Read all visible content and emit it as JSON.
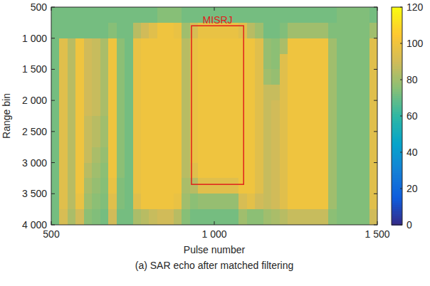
{
  "chart_data": {
    "type": "heatmap",
    "title": "(a) SAR echo after matched filtering",
    "x_label": "Pulse number",
    "y_label": "Range bin",
    "x_edges": [
      500,
      525,
      550,
      575,
      600,
      625,
      650,
      675,
      700,
      725,
      750,
      775,
      800,
      825,
      850,
      875,
      900,
      925,
      950,
      975,
      1000,
      1025,
      1050,
      1075,
      1100,
      1125,
      1150,
      1175,
      1200,
      1225,
      1250,
      1275,
      1300,
      1325,
      1350,
      1375,
      1400,
      1425,
      1450,
      1475,
      1500
    ],
    "y_edges": [
      500,
      750,
      1000,
      1250,
      1500,
      1750,
      2000,
      2250,
      2500,
      2750,
      3000,
      3250,
      3500,
      3750,
      4000
    ],
    "cells": [
      [
        72,
        72,
        72,
        72,
        72,
        72,
        72,
        72,
        72,
        72,
        72,
        72,
        72,
        75,
        75,
        75,
        72,
        72,
        72,
        72,
        72,
        72,
        72,
        72,
        72,
        72,
        72,
        72,
        72,
        72,
        72,
        72,
        72,
        72,
        72,
        74,
        74,
        74,
        74,
        72
      ],
      [
        72,
        72,
        72,
        72,
        72,
        72,
        72,
        75,
        72,
        72,
        85,
        90,
        95,
        100,
        100,
        98,
        80,
        92,
        98,
        98,
        98,
        98,
        98,
        95,
        85,
        80,
        72,
        72,
        74,
        80,
        80,
        80,
        80,
        80,
        74,
        74,
        74,
        74,
        74,
        80
      ],
      [
        72,
        95,
        85,
        100,
        90,
        88,
        82,
        100,
        76,
        72,
        98,
        100,
        100,
        100,
        100,
        100,
        85,
        98,
        100,
        100,
        100,
        100,
        100,
        100,
        100,
        95,
        78,
        76,
        82,
        100,
        100,
        100,
        100,
        100,
        80,
        74,
        74,
        74,
        74,
        95
      ],
      [
        72,
        95,
        85,
        100,
        90,
        88,
        82,
        100,
        76,
        72,
        98,
        100,
        100,
        100,
        100,
        100,
        85,
        98,
        100,
        100,
        100,
        100,
        100,
        100,
        100,
        95,
        78,
        76,
        95,
        100,
        100,
        100,
        100,
        100,
        80,
        74,
        74,
        74,
        74,
        95
      ],
      [
        72,
        95,
        85,
        100,
        90,
        88,
        82,
        100,
        76,
        72,
        98,
        100,
        100,
        100,
        100,
        100,
        85,
        98,
        100,
        100,
        100,
        100,
        100,
        100,
        100,
        95,
        80,
        78,
        95,
        100,
        100,
        100,
        100,
        100,
        80,
        74,
        74,
        74,
        74,
        95
      ],
      [
        72,
        95,
        85,
        100,
        90,
        88,
        82,
        100,
        76,
        72,
        98,
        100,
        100,
        100,
        100,
        100,
        85,
        98,
        100,
        100,
        100,
        100,
        100,
        100,
        100,
        95,
        88,
        88,
        95,
        100,
        100,
        100,
        100,
        100,
        80,
        74,
        74,
        74,
        74,
        95
      ],
      [
        72,
        95,
        85,
        100,
        90,
        88,
        82,
        100,
        76,
        72,
        98,
        100,
        100,
        100,
        100,
        100,
        85,
        98,
        100,
        100,
        100,
        100,
        100,
        100,
        100,
        95,
        88,
        90,
        95,
        100,
        100,
        100,
        100,
        100,
        80,
        74,
        74,
        74,
        74,
        95
      ],
      [
        72,
        95,
        85,
        100,
        88,
        85,
        80,
        100,
        76,
        72,
        98,
        100,
        100,
        100,
        100,
        100,
        85,
        98,
        100,
        100,
        100,
        100,
        100,
        100,
        100,
        95,
        88,
        90,
        95,
        100,
        100,
        100,
        100,
        100,
        80,
        74,
        74,
        74,
        74,
        95
      ],
      [
        72,
        95,
        85,
        100,
        88,
        85,
        80,
        100,
        76,
        72,
        98,
        100,
        100,
        100,
        100,
        100,
        85,
        98,
        100,
        100,
        100,
        100,
        100,
        100,
        100,
        95,
        88,
        90,
        95,
        100,
        100,
        100,
        100,
        100,
        80,
        74,
        74,
        74,
        74,
        95
      ],
      [
        72,
        95,
        85,
        100,
        88,
        82,
        78,
        100,
        76,
        72,
        98,
        100,
        100,
        100,
        100,
        100,
        85,
        98,
        100,
        100,
        100,
        100,
        100,
        100,
        100,
        95,
        88,
        90,
        95,
        100,
        100,
        100,
        100,
        100,
        80,
        74,
        74,
        74,
        74,
        95
      ],
      [
        72,
        95,
        85,
        100,
        85,
        80,
        76,
        100,
        76,
        72,
        98,
        100,
        100,
        100,
        100,
        100,
        85,
        95,
        100,
        100,
        100,
        100,
        100,
        100,
        100,
        95,
        88,
        90,
        95,
        100,
        100,
        100,
        100,
        100,
        80,
        74,
        74,
        74,
        74,
        95
      ],
      [
        72,
        95,
        85,
        100,
        82,
        78,
        75,
        98,
        74,
        72,
        98,
        100,
        100,
        100,
        100,
        100,
        82,
        85,
        95,
        95,
        95,
        95,
        95,
        100,
        100,
        95,
        88,
        90,
        95,
        100,
        100,
        100,
        100,
        100,
        80,
        74,
        74,
        74,
        74,
        95
      ],
      [
        72,
        95,
        85,
        98,
        80,
        76,
        74,
        95,
        74,
        72,
        95,
        100,
        100,
        100,
        100,
        98,
        80,
        76,
        78,
        78,
        78,
        78,
        78,
        92,
        96,
        90,
        88,
        90,
        95,
        100,
        100,
        100,
        100,
        100,
        80,
        74,
        74,
        74,
        74,
        95
      ],
      [
        72,
        92,
        82,
        90,
        76,
        74,
        72,
        90,
        72,
        72,
        82,
        85,
        88,
        90,
        90,
        85,
        75,
        72,
        72,
        72,
        72,
        72,
        72,
        80,
        76,
        76,
        80,
        82,
        85,
        88,
        88,
        88,
        88,
        88,
        76,
        74,
        74,
        74,
        74,
        90
      ]
    ],
    "xlim": [
      500,
      1500
    ],
    "ylim": [
      4000,
      500
    ],
    "xticks": [
      500,
      {
        "value": 1000,
        "label": "1 000"
      },
      {
        "value": 1500,
        "label": "1 500"
      }
    ],
    "yticks": [
      500,
      {
        "value": 1000,
        "label": "1 000"
      },
      {
        "value": 1500,
        "label": "1 500"
      },
      {
        "value": 2000,
        "label": "2 000"
      },
      {
        "value": 2500,
        "label": "2 500"
      },
      {
        "value": 3000,
        "label": "3 000"
      },
      {
        "value": 3500,
        "label": "3 500"
      },
      {
        "value": 4000,
        "label": "4 000"
      }
    ],
    "colorbar": {
      "range": [
        0,
        120
      ],
      "ticks": [
        0,
        20,
        40,
        60,
        80,
        100,
        120
      ]
    },
    "annotations": [
      {
        "text": "MISRJ",
        "x": [
          930,
          1090
        ],
        "y": [
          800,
          3350
        ],
        "color": "#e0201b"
      }
    ],
    "grid": false
  }
}
